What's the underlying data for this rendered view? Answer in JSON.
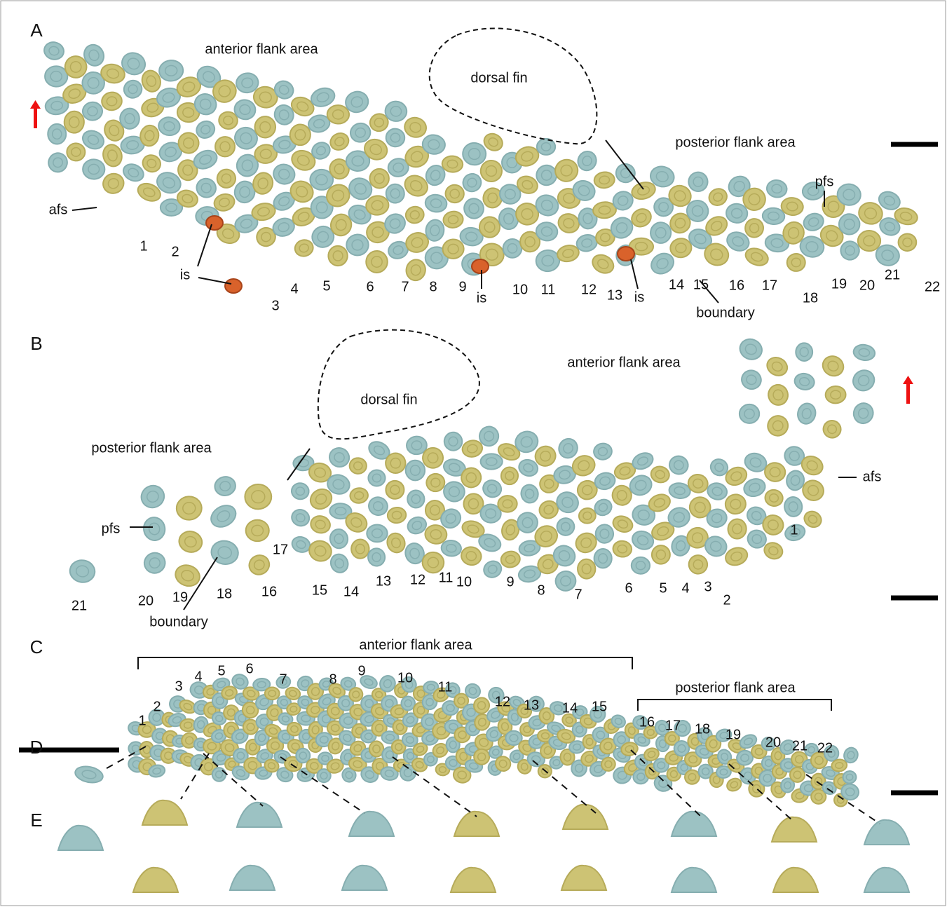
{
  "panels": [
    {
      "label": "A",
      "regions": [
        "anterior flank area",
        "dorsal fin",
        "posterior flank area"
      ],
      "annotations": [
        "afs",
        "pfs",
        "is",
        "is",
        "is",
        "boundary"
      ],
      "rows": [
        1,
        2,
        3,
        4,
        5,
        6,
        7,
        8,
        9,
        10,
        11,
        12,
        13,
        14,
        15,
        16,
        17,
        18,
        19,
        20,
        21,
        22
      ]
    },
    {
      "label": "B",
      "regions": [
        "anterior flank area",
        "dorsal fin",
        "posterior flank area"
      ],
      "annotations": [
        "afs",
        "pfs",
        "boundary"
      ],
      "rows": [
        1,
        2,
        3,
        4,
        5,
        6,
        7,
        8,
        9,
        10,
        11,
        12,
        13,
        14,
        15,
        16,
        17,
        18,
        19,
        20,
        21
      ]
    },
    {
      "label": "C",
      "regions": [
        "anterior flank area",
        "posterior flank area"
      ],
      "rows": [
        1,
        2,
        3,
        4,
        5,
        6,
        7,
        8,
        9,
        10,
        11,
        12,
        13,
        14,
        15,
        16,
        17,
        18,
        19,
        20,
        21,
        22
      ]
    },
    {
      "label": "D"
    },
    {
      "label": "E"
    }
  ]
}
